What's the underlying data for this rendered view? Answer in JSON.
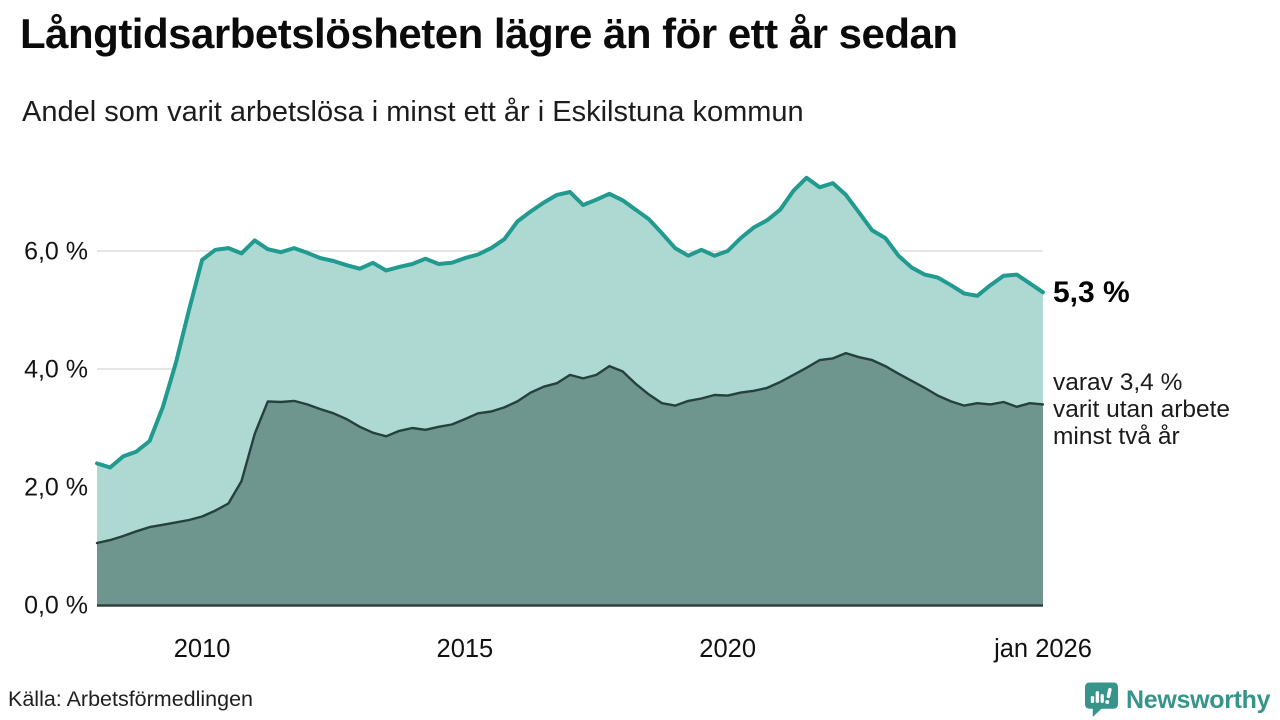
{
  "header": {
    "title": "Långtidsarbetslösheten lägre än för ett år sedan",
    "subtitle": "Andel som varit arbetslösa i minst ett år i Eskilstuna kommun"
  },
  "annotations": {
    "latest_total": "5,3 %",
    "sub_line1": "varav 3,4 %",
    "sub_line2": "varit utan arbete",
    "sub_line3": "minst två år"
  },
  "footer": {
    "source": "Källa: Arbetsförmedlingen",
    "brand": "Newsworthy"
  },
  "colors": {
    "total_fill": "#aed8d2",
    "total_line": "#219a8f",
    "two_year_fill": "#6f958f",
    "two_year_line": "#24423d",
    "grid": "#d7d7d5",
    "baseline": "#31403c",
    "tick_text": "#141414",
    "brand_teal": "#36948b"
  },
  "chart_data": {
    "type": "area",
    "title": "Långtidsarbetslösheten lägre än för ett år sedan",
    "subtitle": "Andel som varit arbetslösa i minst ett år i Eskilstuna kommun",
    "unit": "%",
    "grid": true,
    "xlim": [
      2008,
      2026
    ],
    "ylim": [
      0,
      7.5
    ],
    "x_start": 2008,
    "x_step": 0.25,
    "x_ticks": [
      {
        "year": 2010,
        "label": "2010"
      },
      {
        "year": 2015,
        "label": "2015"
      },
      {
        "year": 2020,
        "label": "2020"
      },
      {
        "year": 2026,
        "label": "jan 2026"
      }
    ],
    "y_ticks": [
      {
        "value": 0,
        "label": "0,0 %"
      },
      {
        "value": 2,
        "label": "2,0 %"
      },
      {
        "value": 4,
        "label": "4,0 %"
      },
      {
        "value": 6,
        "label": "6,0 %"
      }
    ],
    "series": [
      {
        "name": "Andel arbetslösa minst ett år",
        "end_label": "5,3 %",
        "fill": "#aed8d2",
        "stroke": "#219a8f",
        "values": [
          2.4,
          2.33,
          2.52,
          2.6,
          2.78,
          3.35,
          4.1,
          5.0,
          5.85,
          6.02,
          6.05,
          5.96,
          6.18,
          6.03,
          5.98,
          6.05,
          5.97,
          5.88,
          5.83,
          5.76,
          5.7,
          5.8,
          5.67,
          5.73,
          5.78,
          5.87,
          5.78,
          5.8,
          5.88,
          5.94,
          6.05,
          6.2,
          6.5,
          6.67,
          6.82,
          6.95,
          7.0,
          6.78,
          6.87,
          6.97,
          6.86,
          6.7,
          6.54,
          6.3,
          6.05,
          5.92,
          6.02,
          5.92,
          6.0,
          6.22,
          6.4,
          6.52,
          6.7,
          7.02,
          7.24,
          7.08,
          7.15,
          6.95,
          6.65,
          6.35,
          6.22,
          5.92,
          5.72,
          5.6,
          5.55,
          5.42,
          5.28,
          5.24,
          5.42,
          5.58,
          5.6,
          5.45,
          5.3
        ]
      },
      {
        "name": "Andel arbetslösa minst två år",
        "end_label": "varav 3,4 % varit utan arbete minst två år",
        "fill": "#6f958f",
        "stroke": "#24423d",
        "values": [
          1.05,
          1.1,
          1.17,
          1.25,
          1.32,
          1.36,
          1.4,
          1.44,
          1.5,
          1.6,
          1.72,
          2.1,
          2.9,
          3.45,
          3.44,
          3.46,
          3.4,
          3.32,
          3.25,
          3.15,
          3.02,
          2.92,
          2.86,
          2.95,
          3.0,
          2.97,
          3.02,
          3.06,
          3.15,
          3.25,
          3.28,
          3.35,
          3.45,
          3.6,
          3.7,
          3.76,
          3.9,
          3.84,
          3.9,
          4.05,
          3.96,
          3.75,
          3.57,
          3.42,
          3.38,
          3.46,
          3.5,
          3.56,
          3.55,
          3.6,
          3.63,
          3.68,
          3.78,
          3.9,
          4.02,
          4.15,
          4.18,
          4.27,
          4.2,
          4.15,
          4.05,
          3.92,
          3.8,
          3.68,
          3.55,
          3.45,
          3.38,
          3.42,
          3.4,
          3.44,
          3.36,
          3.42,
          3.4
        ]
      }
    ]
  }
}
